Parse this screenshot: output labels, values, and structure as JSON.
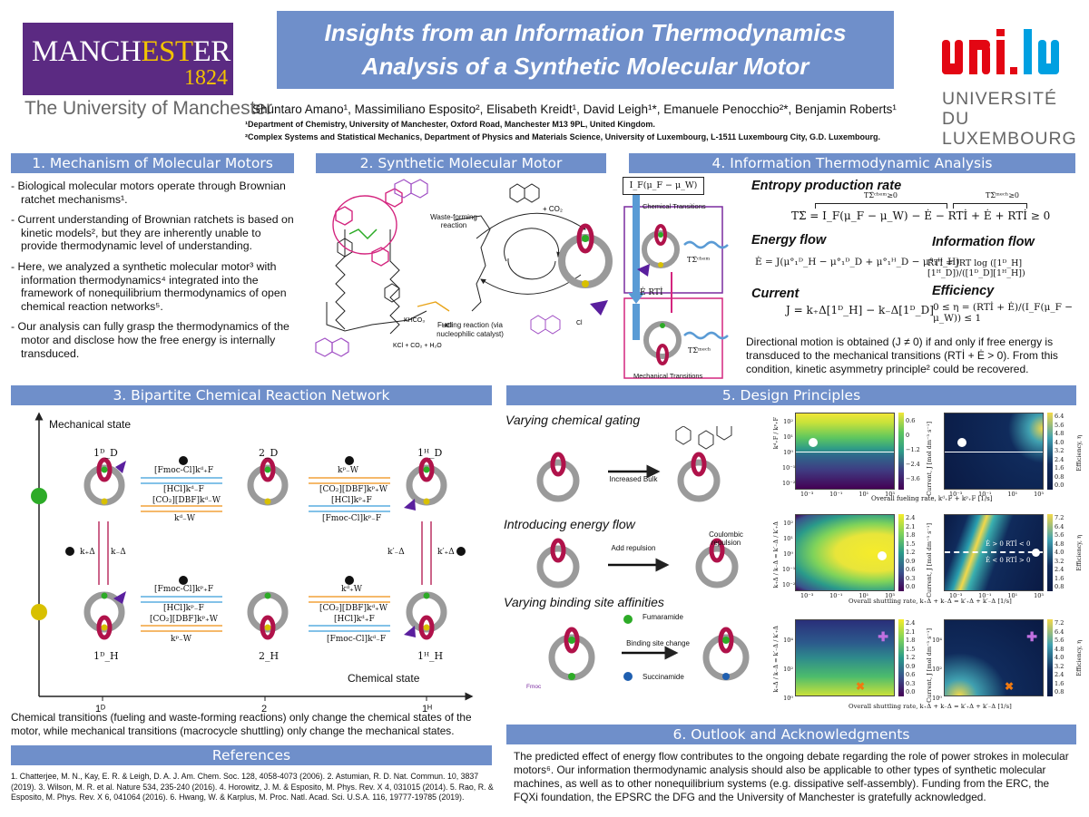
{
  "poster": {
    "title_line1": "Insights from an Information Thermodynamics",
    "title_line2": "Analysis of a Synthetic Molecular Motor",
    "authors": "Shuntaro Amano¹, Massimiliano Esposito², Elisabeth Kreidt¹, David Leigh¹*, Emanuele Penocchio²*, Benjamin Roberts¹",
    "affiliation1": "¹Department of Chemistry, University of Manchester, Oxford Road, Manchester M13 9PL, United Kingdom.",
    "affiliation2": "²Complex Systems and Statistical Mechanics, Department of Physics and Materials Science, University of Luxembourg, L-1511 Luxembourg City, G.D. Luxembourg."
  },
  "logos": {
    "manchester_word_a": "MANCH",
    "manchester_word_b": "EST",
    "manchester_word_c": "ER",
    "manchester_year": "1824",
    "manchester_caption": "The University of Manchester",
    "unilu_line1": "UNIVERSITÉ DU",
    "unilu_line2": "LUXEMBOURG",
    "unilu_colors": {
      "red": "#e30613",
      "blue": "#00a0e1"
    }
  },
  "colors": {
    "header_blue": "#6f8fca",
    "ring_red": "#b0124a",
    "green": "#2dab27",
    "yellow": "#d8c000",
    "purple": "#5a1f9e",
    "magenta": "#d4267f"
  },
  "s1": {
    "heading": "1. Mechanism of Molecular Motors",
    "b1": "- Biological molecular motors operate through Brownian ratchet mechanisms¹.",
    "b2": "- Current understanding of Brownian ratchets is based on kinetic models², but they are inherently unable to provide thermodynamic level of understanding.",
    "b3": "- Here, we analyzed a synthetic molecular motor³ with information thermodynamics⁴ integrated into the framework of nonequilibrium thermodynamics of open chemical reaction networks⁵.",
    "b4": "- Our analysis can fully grasp the thermodynamics of the motor and disclose how the free energy is internally transduced."
  },
  "s2": {
    "heading": "2. Synthetic Molecular Motor",
    "waste": "Waste-forming reaction",
    "co2": "+ CO₂",
    "fueling": "Fueling reaction (via nucleophilic catalyst)",
    "hcl": "HCl",
    "khco3": "KHCO₃",
    "kcl": "KCl + CO₂ + H₂O",
    "cl": "Cl"
  },
  "s3": {
    "heading": "3. Bipartite Chemical Reaction Network",
    "ylabel": "Mechanical state",
    "xlabel": "Chemical state",
    "x1": "1ᴰ",
    "x2": "2",
    "x3": "1ᴴ",
    "top1": "1ᴰ_D",
    "top2": "2_D",
    "top3": "1ᴴ_D",
    "bot1": "1ᴰ_H",
    "bot2": "2_H",
    "bot3": "1ᴴ_H",
    "kplus": "k₊Δ",
    "kminus": "k₋Δ",
    "kpminus": "k′₋Δ",
    "kpplus": "k′₊Δ",
    "rt1a": "[Fmoc-Cl]kᵈ₊F",
    "rt1b": "[HCl]kᵈ₋F",
    "rt1c": "[CO₂][DBF]kᵈ₋W",
    "rt1d": "kᵈ₋W",
    "rt2a": "kᵖ₋W",
    "rt2b": "[CO₂][DBF]kᵖ₊W",
    "rt2c": "[HCl]kᵖ₊F",
    "rt2d": "[Fmoc-Cl]kᵖ₋F",
    "rb1a": "[Fmoc-Cl]kᵖ₊F",
    "rb1b": "[HCl]kᵖ₋F",
    "rb1c": "[CO₂][DBF]kᵖ₊W",
    "rb1d": "kᵖ₋W",
    "rb2a": "kᵈ₊W",
    "rb2b": "[CO₂][DBF]kᵈ₊W",
    "rb2c": "[HCl]kᵈ₊F",
    "rb2d": "[Fmoc-Cl]kᵈ₋F",
    "caption": "Chemical transitions (fueling and waste-forming reactions) only change the chemical states of the motor, while mechanical transitions (macrocycle shuttling) only change the mechanical states."
  },
  "s4": {
    "heading": "4. Information Thermodynamic Analysis",
    "input": "I_F(μ_F − μ_W)",
    "chem_trans": "Chemical Transitions",
    "mech_trans": "Mechanical Transitions",
    "tsig_chem": "TΣ̇ᶜʰᵉᵐ",
    "tsig_mech": "TΣ̇ᵐᵉᶜʰ",
    "flows": "Ė   RTİ",
    "entropy_label": "Entropy production rate",
    "entropy_eq": "TΣ̇ = I_F(μ_F − μ_W) − Ė − RTİ + Ė + RTİ ≥ 0",
    "entropy_over1": "TΣ̇ᶜʰᵉᵐ≥0",
    "entropy_over2": "TΣ̇ᵐᵉᶜʰ≥0",
    "energy_label": "Energy flow",
    "energy_eq": "Ė = J(μ°₁ᴰ_H − μ°₁ᴰ_D + μ°₁ᴴ_D − μ°₁ᴴ_H)",
    "info_label": "Information flow",
    "info_eq": "RTİ = JRT log ([1ᴰ_H][1ᴴ_D])/([1ᴰ_D][1ᴴ_H])",
    "current_label": "Current",
    "current_eq": "J = k₊Δ[1ᴰ_H] − k₋Δ[1ᴰ_D]",
    "eff_label": "Efficiency",
    "eff_eq": "0 ≤ η = (RTİ + Ė)/(I_F(μ_F − μ_W)) ≤ 1",
    "conclusion": "Directional motion is obtained (J ≠ 0) if and only if free energy is transduced to the mechanical transitions (RTİ + Ė > 0). From this condition, kinetic asymmetry principle² could be recovered."
  },
  "s5": {
    "heading": "5. Design Principles",
    "row1_title": "Varying chemical gating",
    "row1_arrow": "Increased Bulk",
    "row1_xlabel": "Overall fueling rate, kᵈ₊F + kᵖ₊F [1/s]",
    "row1_ylabel": "kᵈ₊F / kᵖ₊F",
    "row2_title": "Introducing energy flow",
    "row2_arrow": "Add repulsion",
    "row2_note": "Coulombic repulsion",
    "row2_xlabel": "Overall shuttling rate, k₊Δ + k₋Δ = k′₊Δ + k′₋Δ [1/s]",
    "row2_ylabel": "k₊Δ / k₋Δ = k′₋Δ / k′₊Δ",
    "row2_lbl_a": "Ė > 0   RTİ < 0",
    "row2_lbl_b": "Ė < 0   RTİ > 0",
    "row3_title": "Varying binding site affinities",
    "row3_arrow": "Binding site change",
    "row3_fum": "Fumaramide",
    "row3_suc": "Succinamide",
    "row3_fmoc": "Fmoc",
    "row3_xlabel": "Overall shuttling rate, k₊Δ + k₋Δ = k′₊Δ + k′₋Δ [1/s]",
    "row3_ylabel": "k₊Δ / k₋Δ = k′₋Δ / k′₊Δ",
    "cbar_current": "Current, J [mol dm⁻³ s⁻¹]",
    "cbar_eff": "Efficiency, η",
    "cb1": [
      "0.6",
      "0",
      "−1.2",
      "−2.4",
      "−3.6"
    ],
    "cb1e": [
      "6.4",
      "5.6",
      "4.8",
      "4.0",
      "3.2",
      "2.4",
      "1.6",
      "0.8",
      "0.0"
    ],
    "cb2": [
      "2.4",
      "2.1",
      "1.8",
      "1.5",
      "1.2",
      "0.9",
      "0.6",
      "0.3",
      "0.0"
    ],
    "cb2e": [
      "7.2",
      "6.4",
      "5.6",
      "4.8",
      "4.0",
      "3.2",
      "2.4",
      "1.6",
      "0.8"
    ],
    "cb3": [
      "2.4",
      "2.1",
      "1.8",
      "1.5",
      "1.2",
      "0.9",
      "0.6",
      "0.3",
      "0.0"
    ],
    "cb3e": [
      "7.2",
      "6.4",
      "5.6",
      "4.8",
      "4.0",
      "3.2",
      "2.4",
      "1.6",
      "0.8"
    ],
    "scale_note": "×10⁻⁶",
    "xt": [
      "10⁻³",
      "10⁻¹",
      "10¹",
      "10³"
    ],
    "yt1": [
      "10²",
      "10¹",
      "10⁰",
      "10⁻¹",
      "10⁻²"
    ],
    "yt3": [
      "10⁴",
      "10²",
      "10⁰"
    ]
  },
  "refs": {
    "heading": "References",
    "text": "1. Chatterjee, M. N., Kay, E. R. & Leigh, D. A. J. Am. Chem. Soc. 128, 4058-4073 (2006). 2. Astumian, R. D. Nat. Commun. 10, 3837 (2019). 3. Wilson, M. R. et al. Nature 534, 235-240 (2016). 4. Horowitz, J. M. & Esposito, M. Phys. Rev. X 4, 031015 (2014). 5. Rao, R. & Esposito, M. Phys. Rev. X 6, 041064 (2016). 6. Hwang, W. & Karplus, M. Proc. Natl. Acad. Sci. U.S.A. 116, 19777-19785 (2019)."
  },
  "s6": {
    "heading": "6. Outlook and Acknowledgments",
    "text": "The predicted effect of energy flow contributes to the ongoing debate regarding the role of power strokes in molecular motors⁶. Our information thermodynamic analysis should also be applicable to other types of synthetic molecular machines, as well as to other nonequilibrium systems (e.g. dissipative self-assembly). Funding from the ERC, the FQXi foundation, the EPSRC the DFG and the University of Manchester is gratefully acknowledged."
  }
}
